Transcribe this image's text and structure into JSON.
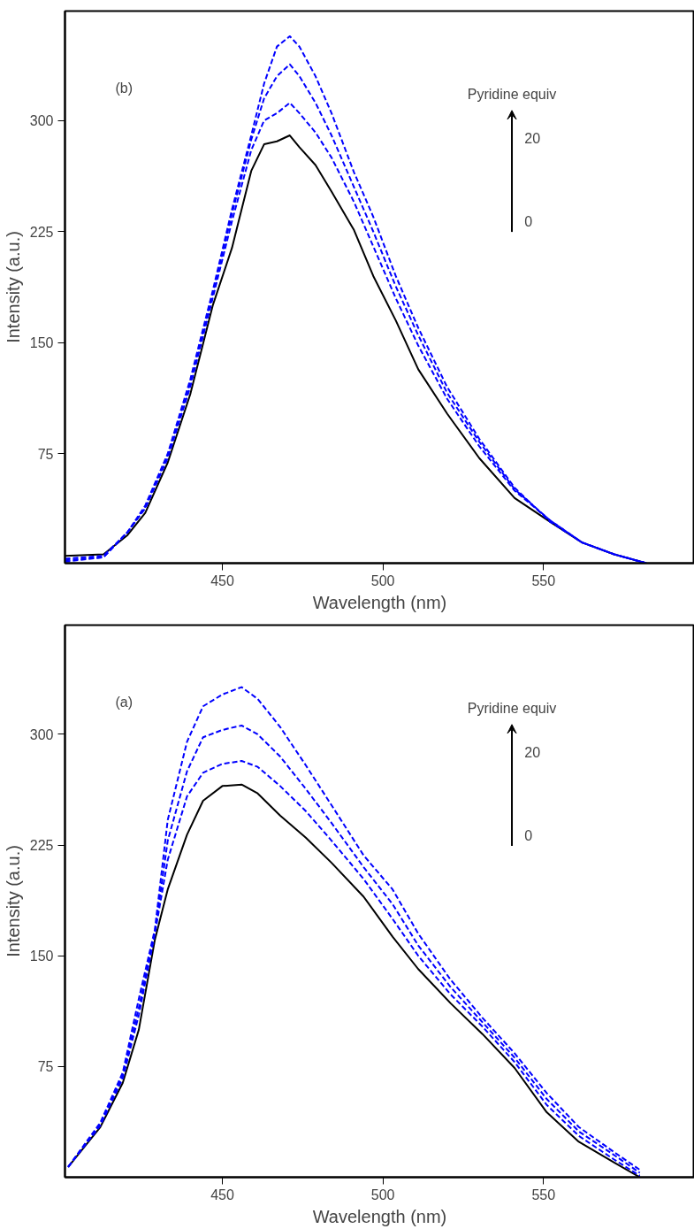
{
  "chart_data": [
    {
      "type": "line",
      "xlabel": "Wavelength (nm)",
      "ylabel": "Intensity (a.u.)",
      "annotations": [
        "(b)",
        "Pyridine equiv",
        "20",
        "0"
      ],
      "x": [
        401,
        413,
        420.5,
        426,
        433,
        440,
        447,
        453,
        459,
        463,
        467,
        471,
        474,
        479,
        484,
        491,
        497,
        504,
        511,
        520,
        530,
        541,
        552,
        562,
        572,
        582
      ],
      "xlim": [
        401,
        597
      ],
      "ylim": [
        1,
        374
      ],
      "xticks": [
        450,
        500,
        550
      ],
      "yticks": [
        75,
        150,
        225,
        300
      ],
      "grid": false,
      "series": [
        {
          "color": "#000000",
          "line_style": "solid",
          "values": [
            6,
            7,
            20,
            35,
            69,
            115,
            175,
            214,
            266,
            284,
            286,
            290,
            282,
            270,
            252,
            226,
            195,
            165,
            132,
            102,
            72,
            45,
            29,
            15,
            7,
            1
          ]
        },
        {
          "color": "#0000ff",
          "line_style": "dashed",
          "values": [
            4,
            6,
            22,
            38,
            72,
            120,
            180,
            232,
            280,
            300,
            305,
            312,
            305,
            292,
            275,
            245,
            215,
            180,
            148,
            112,
            80,
            50,
            30,
            15,
            7,
            1
          ]
        },
        {
          "color": "#0000ff",
          "line_style": "dashed",
          "values": [
            3,
            5,
            22,
            39,
            74,
            123,
            183,
            237,
            287,
            315,
            330,
            338,
            330,
            312,
            290,
            255,
            225,
            188,
            155,
            116,
            83,
            51,
            30,
            15,
            7,
            1
          ]
        },
        {
          "color": "#0000ff",
          "line_style": "dashed",
          "values": [
            2,
            5,
            22,
            40,
            75,
            125,
            185,
            240,
            290,
            325,
            350,
            357,
            350,
            330,
            305,
            265,
            235,
            195,
            160,
            120,
            85,
            52,
            29,
            15,
            7,
            1
          ]
        }
      ]
    },
    {
      "type": "line",
      "xlabel": "Wavelength (nm)",
      "ylabel": "Intensity (a.u.)",
      "annotations": [
        "(a)",
        "Pyridine equiv",
        "20",
        "0"
      ],
      "x": [
        402,
        412,
        419,
        424,
        429,
        433,
        439,
        444,
        450,
        456,
        461,
        468,
        476,
        484,
        494,
        503,
        511,
        521,
        531,
        541,
        551,
        561,
        572,
        580
      ],
      "xlim": [
        401,
        597
      ],
      "ylim": [
        0,
        374
      ],
      "xticks": [
        450,
        500,
        550
      ],
      "yticks": [
        75,
        150,
        225,
        300
      ],
      "grid": false,
      "series": [
        {
          "color": "#000000",
          "line_style": "solid",
          "values": [
            7,
            34,
            64,
            100,
            161,
            195,
            232,
            255,
            265,
            266,
            260,
            245,
            230,
            213,
            190,
            163,
            141,
            118,
            97,
            74,
            44,
            24,
            10,
            0
          ]
        },
        {
          "color": "#0000ff",
          "line_style": "dashed",
          "values": [
            7,
            35,
            67,
            110,
            165,
            215,
            258,
            274,
            280,
            282,
            278,
            265,
            248,
            228,
            202,
            175,
            150,
            124,
            102,
            78,
            49,
            28,
            12,
            1
          ]
        },
        {
          "color": "#0000ff",
          "line_style": "dashed",
          "values": [
            7,
            36,
            69,
            115,
            166,
            228,
            275,
            298,
            303,
            306,
            300,
            285,
            263,
            240,
            210,
            185,
            157,
            129,
            105,
            81,
            53,
            31,
            15,
            3
          ]
        },
        {
          "color": "#0000ff",
          "line_style": "dashed",
          "values": [
            7,
            37,
            71,
            121,
            168,
            242,
            295,
            319,
            327,
            332,
            324,
            305,
            279,
            252,
            218,
            195,
            165,
            134,
            108,
            84,
            57,
            34,
            17,
            5
          ]
        }
      ]
    }
  ]
}
